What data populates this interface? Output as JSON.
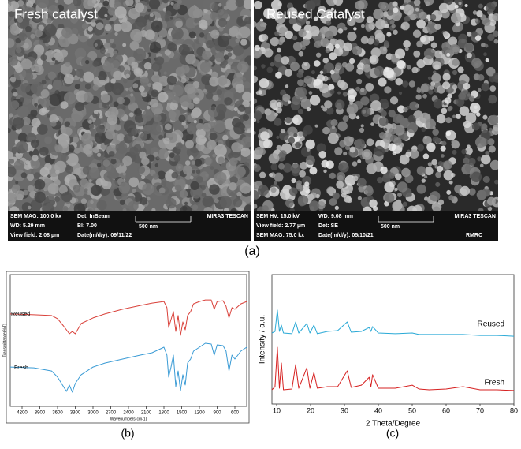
{
  "images": [
    {
      "title": "Fresh catalyst",
      "info": [
        "SEM MAG: 100.0 kx",
        "Det: InBeam",
        "MIRA3 TESCAN",
        "WD: 5.29 mm",
        "BI: 7.00",
        "500 nm",
        "View field: 2.08 µm",
        "Date(m/d/y): 09/11/22"
      ]
    },
    {
      "title": "Reused Catalyst",
      "info": [
        "SEM HV: 15.0 kV",
        "WD: 9.08 mm",
        "MIRA3 TESCAN",
        "View field: 2.77 µm",
        "Det: SE",
        "500 nm",
        "SEM MAG: 75.0 kx",
        "Date(m/d/y): 05/10/21",
        "RMRC"
      ]
    }
  ],
  "panel_labels": [
    "(a)",
    "(b)",
    "(c)"
  ],
  "chart_data": [
    {
      "type": "line",
      "x_label": "Wavenumbers(cm-1)",
      "y_label": "Transmittance(%T)",
      "xlim": [
        4400,
        400
      ],
      "xticks": [
        4200,
        3900,
        3600,
        3300,
        3000,
        2700,
        2400,
        2100,
        1800,
        1500,
        1200,
        900,
        600
      ],
      "ylim": [
        0,
        100
      ],
      "x": [
        4400,
        4000,
        3700,
        3600,
        3500,
        3450,
        3400,
        3350,
        3300,
        3200,
        3000,
        2800,
        2500,
        2200,
        2000,
        1800,
        1750,
        1720,
        1680,
        1640,
        1600,
        1560,
        1520,
        1480,
        1440,
        1400,
        1350,
        1300,
        1200,
        1100,
        1000,
        950,
        900,
        800,
        750,
        700,
        650,
        600,
        500,
        400
      ],
      "series": [
        {
          "name": "Reused",
          "color": "#d9413a",
          "values": [
            70.1,
            69.5,
            68.9,
            66.5,
            61.1,
            58.1,
            55.1,
            56.9,
            55.1,
            62.9,
            67.1,
            70.1,
            73.7,
            76.6,
            78.4,
            79.6,
            74.9,
            59.9,
            65.9,
            71.9,
            56.9,
            68.9,
            53.9,
            64.1,
            58.1,
            68.9,
            71.9,
            77.8,
            79.6,
            80.8,
            80.8,
            73.7,
            79.6,
            80.2,
            76.0,
            67.1,
            74.9,
            73.7,
            77.8,
            79.6
          ]
        },
        {
          "name": "Fresh",
          "color": "#3a9bd5",
          "values": [
            29.9,
            29.3,
            26.9,
            22.2,
            15.0,
            11.4,
            16.2,
            10.8,
            17.4,
            24.0,
            29.9,
            32.9,
            35.9,
            38.9,
            40.7,
            44.9,
            38.9,
            22.2,
            29.9,
            38.9,
            15.0,
            26.9,
            12.0,
            24.0,
            16.2,
            32.9,
            35.9,
            41.9,
            44.9,
            47.9,
            47.3,
            38.9,
            46.7,
            46.1,
            41.9,
            26.9,
            38.9,
            35.9,
            41.9,
            44.9
          ]
        }
      ]
    },
    {
      "type": "line",
      "x_label": "2 Theta/Degree",
      "y_label": "Intensity / a.u.",
      "xlim": [
        8.6,
        80
      ],
      "xticks": [
        10,
        20,
        30,
        40,
        50,
        60,
        70,
        80
      ],
      "ylim": [
        0,
        100
      ],
      "x": [
        8.6,
        9.5,
        10.2,
        10.8,
        11.4,
        12,
        14.5,
        15.6,
        16.5,
        18.9,
        19.8,
        21,
        22,
        25,
        28,
        30.8,
        32,
        35,
        37.3,
        37.8,
        38.3,
        40,
        45,
        50,
        52,
        55,
        60,
        65,
        70,
        75,
        80
      ],
      "series": [
        {
          "name": "Reused",
          "color": "#29a9d6",
          "values": [
            54.9,
            56.1,
            72.6,
            56.1,
            61.0,
            54.9,
            54.3,
            63.4,
            54.9,
            62.2,
            54.9,
            61.0,
            54.3,
            56.1,
            56.7,
            63.4,
            55.5,
            56.1,
            59.1,
            56.1,
            59.8,
            54.9,
            54.3,
            54.9,
            53.7,
            53.7,
            53.7,
            53.7,
            53.0,
            53.0,
            52.4
          ]
        },
        {
          "name": "Fresh",
          "color": "#d62020",
          "values": [
            11.0,
            13.4,
            43.9,
            12.2,
            31.7,
            11.0,
            11.6,
            30.5,
            12.2,
            28.0,
            12.2,
            24.4,
            12.2,
            13.4,
            13.4,
            25.6,
            12.8,
            14.6,
            20.7,
            13.4,
            22.6,
            12.2,
            12.2,
            14.6,
            11.6,
            11.0,
            11.6,
            13.4,
            11.0,
            11.0,
            10.4
          ]
        }
      ]
    }
  ]
}
